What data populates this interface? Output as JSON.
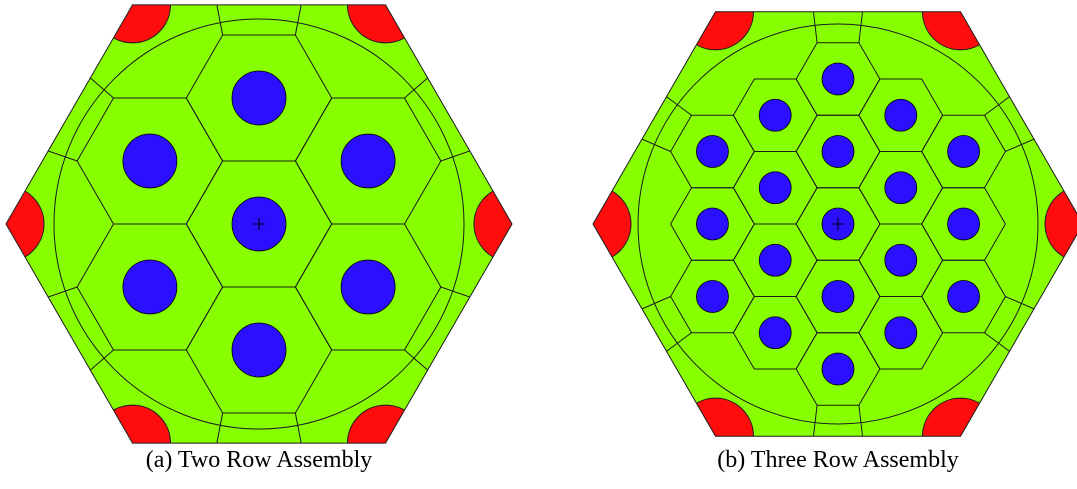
{
  "colors": {
    "background_fill": "#88ff00",
    "pin_fill": "#2b10ff",
    "corner_fill": "#ff0d0d",
    "line": "#1a1a1a"
  },
  "figures": [
    {
      "caption": "(a) Two Row Assembly",
      "rings": 2
    },
    {
      "caption": "(b) Three Row Assembly",
      "rings": 3
    }
  ]
}
